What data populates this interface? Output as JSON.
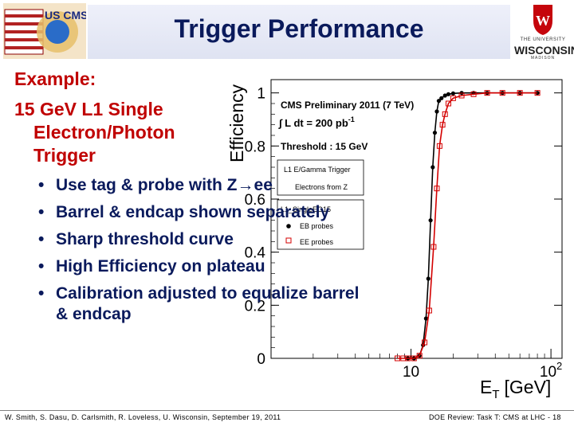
{
  "header": {
    "title": "Trigger Performance",
    "logo_left_text": "US CMS",
    "logo_right": {
      "line1": "THE UNIVERSITY",
      "line2": "WISCONSIN",
      "line3": "MADISON"
    }
  },
  "example": {
    "line1": "Example:",
    "line2": "15 GeV L1 Single",
    "line3": "Electron/Photon",
    "line4": "Trigger"
  },
  "bullets": [
    "Use tag & probe with Z→ee",
    "Barrel & endcap shown separately",
    "Sharp threshold curve",
    "High Efficiency on plateau",
    "Calibration adjusted to equalize barrel & endcap"
  ],
  "footer": {
    "left": "W. Smith, S. Dasu, D. Carlsmith, R. Loveless, U. Wisconsin, September 19, 2011",
    "right": "DOE Review: Task T: CMS at LHC - 18"
  },
  "colors": {
    "title": "#0a1a5c",
    "example": "#c00000",
    "eb_series": "#000000",
    "ee_series": "#d40000"
  },
  "chart_data": {
    "type": "scatter",
    "xlabel_main": "E",
    "xlabel_sub": "T",
    "xlabel_unit": "[GeV]",
    "ylabel": "Efficiency",
    "xscale": "log",
    "xlim": [
      1,
      120
    ],
    "ylim": [
      0,
      1.05
    ],
    "x_ticks": [
      {
        "value": 10,
        "label": "10"
      },
      {
        "value": 100,
        "label": "10",
        "sup": "2"
      }
    ],
    "y_ticks": [
      0,
      0.2,
      0.4,
      0.6,
      0.8,
      1
    ],
    "y_tick_labels": [
      "0",
      "0.2",
      "0.4",
      "0.6",
      "0.8",
      "1"
    ],
    "annotations": {
      "line1": "CMS Preliminary 2011 (7 TeV)",
      "line2": "∫ L dt = 200 pb",
      "line2_sup": "-1",
      "line3": "Threshold : 15 GeV"
    },
    "legend": {
      "box1_line1": "L1 E/Gamma Trigger",
      "box1_line2": "Electrons from Z",
      "box2_title": "L1_SingleEG15",
      "entries": [
        "EB probes",
        "EE probes"
      ]
    },
    "series": [
      {
        "name": "EB probes",
        "marker": "filled-circle",
        "color": "#000000",
        "x": [
          9.5,
          10.5,
          11.5,
          12.2,
          12.8,
          13.3,
          13.8,
          14.3,
          14.8,
          15.3,
          15.8,
          16.5,
          17.5,
          18.5,
          20,
          23,
          28,
          35,
          45,
          60,
          80
        ],
        "y": [
          0.0,
          0.0,
          0.01,
          0.05,
          0.15,
          0.3,
          0.52,
          0.72,
          0.85,
          0.93,
          0.97,
          0.98,
          0.99,
          0.995,
          0.998,
          1.0,
          1.0,
          1.0,
          1.0,
          1.0,
          1.0
        ]
      },
      {
        "name": "EE probes",
        "marker": "open-square",
        "color": "#d40000",
        "x": [
          8.0,
          8.8,
          9.5,
          10.5,
          11.5,
          12.5,
          13.5,
          14.5,
          15.3,
          16.0,
          16.8,
          17.5,
          18.5,
          20,
          23,
          28,
          35,
          45,
          60,
          80
        ],
        "y": [
          0.0,
          0.0,
          0.0,
          0.0,
          0.01,
          0.06,
          0.18,
          0.42,
          0.64,
          0.8,
          0.88,
          0.92,
          0.96,
          0.98,
          0.99,
          0.995,
          1.0,
          1.0,
          1.0,
          1.0
        ]
      }
    ]
  }
}
